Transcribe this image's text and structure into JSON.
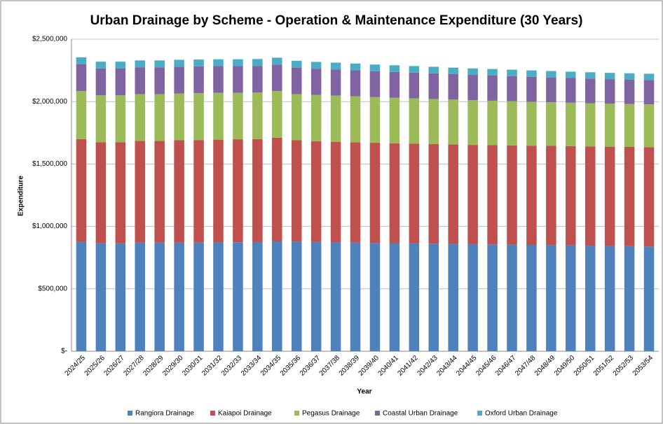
{
  "chart_data": {
    "type": "stacked_bar",
    "title": "Urban Drainage by Scheme - Operation & Maintenance Expenditure (30 Years)",
    "x_label": "Year",
    "y_label": "Expenditure",
    "categories": [
      "2024/25",
      "2025/26",
      "2026/27",
      "2027/28",
      "2028/29",
      "2029/30",
      "2030/31",
      "2031/32",
      "2032/33",
      "2033/34",
      "2034/35",
      "2035/36",
      "2036/37",
      "2037/38",
      "2038/39",
      "2039/40",
      "2040/41",
      "2041/42",
      "2042/43",
      "2043/44",
      "2044/45",
      "2045/46",
      "2046/47",
      "2047/48",
      "2048/49",
      "2049/50",
      "2050/51",
      "2051/52",
      "2052/53",
      "2053/54"
    ],
    "series": [
      {
        "name": "Rangiora Drainage",
        "color": "#4f81bd",
        "values": [
          875000,
          865000,
          865000,
          870000,
          870000,
          870000,
          870000,
          872000,
          873000,
          875000,
          880000,
          878000,
          875000,
          872000,
          870000,
          868000,
          866000,
          864000,
          862000,
          860000,
          858000,
          856000,
          854000,
          852000,
          850000,
          848000,
          846000,
          844000,
          842000,
          840000
        ]
      },
      {
        "name": "Kaiapoi Drainage",
        "color": "#c0504d",
        "values": [
          825000,
          810000,
          810000,
          815000,
          815000,
          820000,
          822000,
          823000,
          825000,
          825000,
          830000,
          812000,
          808000,
          806000,
          804000,
          802000,
          800000,
          798000,
          797000,
          796000,
          795000,
          795000,
          795000,
          795000,
          795000,
          795000,
          795000,
          795000,
          795000,
          795000
        ]
      },
      {
        "name": "Pegasus Drainage",
        "color": "#9bbb59",
        "values": [
          385000,
          375000,
          375000,
          375000,
          375000,
          375000,
          375000,
          375000,
          372000,
          372000,
          375000,
          370000,
          370000,
          370000,
          368000,
          366000,
          365000,
          364000,
          362000,
          360000,
          358000,
          356000,
          354000,
          352000,
          350000,
          348000,
          346000,
          345000,
          344000,
          343000
        ]
      },
      {
        "name": "Coastal Urban Drainage",
        "color": "#8064a2",
        "values": [
          215000,
          215000,
          215000,
          215000,
          215000,
          215000,
          215000,
          214000,
          214000,
          214000,
          212000,
          212000,
          211000,
          210000,
          209000,
          208000,
          207000,
          206000,
          205000,
          204000,
          203000,
          202000,
          201000,
          200000,
          199000,
          198000,
          197000,
          196000,
          196000,
          195000
        ]
      },
      {
        "name": "Oxford Urban Drainage",
        "color": "#4bacc6",
        "values": [
          55000,
          55000,
          55000,
          55000,
          55000,
          55000,
          55000,
          55000,
          55000,
          55000,
          55000,
          55000,
          54000,
          54000,
          54000,
          53000,
          53000,
          53000,
          53000,
          52000,
          52000,
          52000,
          52000,
          51000,
          51000,
          51000,
          51000,
          50000,
          50000,
          50000
        ]
      }
    ],
    "ylim": [
      0,
      2500000
    ],
    "yticks": [
      {
        "value": 0,
        "label": "$-"
      },
      {
        "value": 500000,
        "label": "$500,000"
      },
      {
        "value": 1000000,
        "label": "$1,000,000"
      },
      {
        "value": 1500000,
        "label": "$1,500,000"
      },
      {
        "value": 2000000,
        "label": "$2,000,000"
      },
      {
        "value": 2500000,
        "label": "$2,500,000"
      }
    ],
    "grid": true,
    "legend": "bottom"
  }
}
